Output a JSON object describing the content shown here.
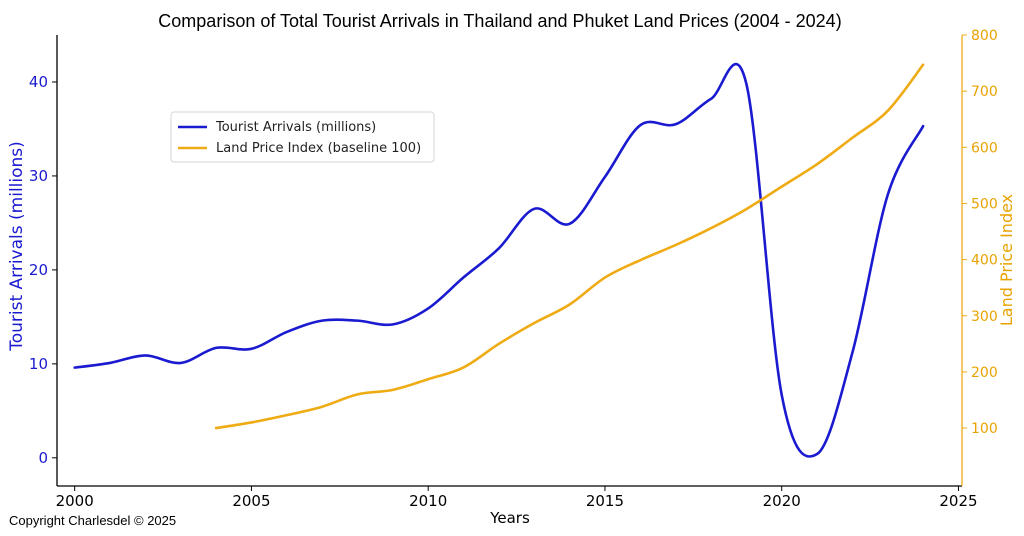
{
  "chart_data": {
    "type": "line",
    "title": "Comparison of Total Tourist Arrivals in Thailand and Phuket Land Prices (2004 - 2024)",
    "xlabel": "Years",
    "ylabel_left": "Tourist Arrivals (millions)",
    "ylabel_right": "Land Price Index",
    "xlim": [
      1999.5,
      2025.1
    ],
    "ylim_left": [
      -3,
      45
    ],
    "ylim_right": [
      -3.2,
      800
    ],
    "x_ticks": [
      2000,
      2005,
      2010,
      2015,
      2020,
      2025
    ],
    "y_ticks_left": [
      0,
      10,
      20,
      30,
      40
    ],
    "y_ticks_right": [
      100,
      200,
      300,
      400,
      500,
      600,
      700,
      800
    ],
    "grid": false,
    "legend_position": "upper-left",
    "series": [
      {
        "name": "Tourist Arrivals (millions)",
        "axis": "left",
        "color": "#1a1ad0",
        "x": [
          2000,
          2001,
          2002,
          2003,
          2004,
          2005,
          2006,
          2007,
          2008,
          2009,
          2010,
          2011,
          2012,
          2013,
          2014,
          2015,
          2016,
          2017,
          2018,
          2019,
          2020,
          2021,
          2022,
          2023,
          2024
        ],
        "values": [
          9.6,
          10.1,
          10.9,
          10.1,
          11.7,
          11.6,
          13.4,
          14.6,
          14.6,
          14.2,
          15.9,
          19.2,
          22.3,
          26.5,
          24.9,
          29.9,
          35.4,
          35.5,
          38.2,
          39.8,
          6.7,
          0.4,
          11.2,
          28.0,
          35.3
        ]
      },
      {
        "name": "Land Price Index (baseline 100)",
        "axis": "right",
        "color": "#efab14",
        "x": [
          2004,
          2005,
          2006,
          2007,
          2008,
          2009,
          2010,
          2011,
          2012,
          2013,
          2014,
          2015,
          2016,
          2017,
          2018,
          2019,
          2020,
          2021,
          2022,
          2023,
          2024
        ],
        "values": [
          100,
          110,
          123,
          138,
          160,
          168,
          187,
          208,
          250,
          287,
          320,
          368,
          399,
          426,
          456,
          490,
          530,
          570,
          617,
          665,
          747
        ]
      }
    ]
  },
  "footer": {
    "copyright": "Copyright Charlesdel © 2025"
  }
}
